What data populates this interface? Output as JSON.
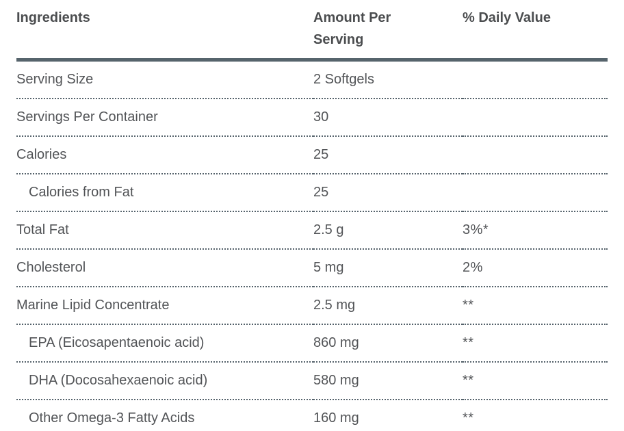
{
  "colors": {
    "header_rule": "#56646c",
    "row_rule_dotted": "#55626b",
    "header_text": "#4b4d4f",
    "body_text": "#525457",
    "background": "#ffffff"
  },
  "table": {
    "columns": [
      "Ingredients",
      "Amount Per Serving",
      "% Daily Value"
    ],
    "rows": [
      {
        "ingredient": "Serving Size",
        "amount": "2 Softgels",
        "daily_value": "",
        "indent": false
      },
      {
        "ingredient": "Servings Per Container",
        "amount": "30",
        "daily_value": "",
        "indent": false
      },
      {
        "ingredient": "Calories",
        "amount": "25",
        "daily_value": "",
        "indent": false
      },
      {
        "ingredient": "Calories from Fat",
        "amount": "25",
        "daily_value": "",
        "indent": true
      },
      {
        "ingredient": "Total Fat",
        "amount": "2.5 g",
        "daily_value": "3%*",
        "indent": false
      },
      {
        "ingredient": "Cholesterol",
        "amount": "5 mg",
        "daily_value": "2%",
        "indent": false
      },
      {
        "ingredient": "Marine Lipid Concentrate",
        "amount": "2.5 mg",
        "daily_value": "**",
        "indent": false
      },
      {
        "ingredient": "EPA (Eicosapentaenoic acid)",
        "amount": "860 mg",
        "daily_value": "**",
        "indent": true
      },
      {
        "ingredient": "DHA (Docosahexaenoic acid)",
        "amount": "580 mg",
        "daily_value": "**",
        "indent": true
      },
      {
        "ingredient": "Other Omega-3 Fatty Acids",
        "amount": "160 mg",
        "daily_value": "**",
        "indent": true
      }
    ]
  }
}
